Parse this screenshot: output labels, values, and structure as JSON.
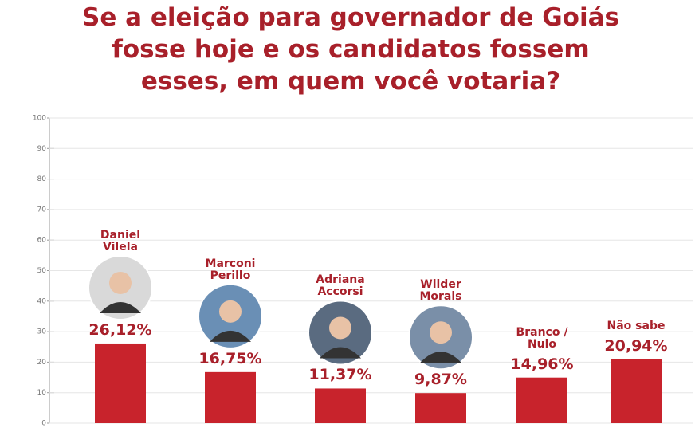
{
  "chart_data": {
    "type": "bar",
    "title": "Se a eleição para governador de Goiás fosse hoje e os candidatos fossem esses, em quem você votaria?",
    "categories": [
      "Daniel Vilela",
      "Marconi Perillo",
      "Adriana Accorsi",
      "Wilder Morais",
      "Branco / Nulo",
      "Não sabe"
    ],
    "values": [
      26.12,
      16.75,
      11.37,
      9.87,
      14.96,
      20.94
    ],
    "value_labels": [
      "26,12%",
      "16,75%",
      "11,37%",
      "9,87%",
      "14,96%",
      "20,94%"
    ],
    "color": "#c8232c",
    "ylim": [
      0,
      100
    ],
    "yticks": [
      0,
      10,
      20,
      30,
      40,
      50,
      60,
      70,
      80,
      90,
      100
    ],
    "grid": true
  }
}
